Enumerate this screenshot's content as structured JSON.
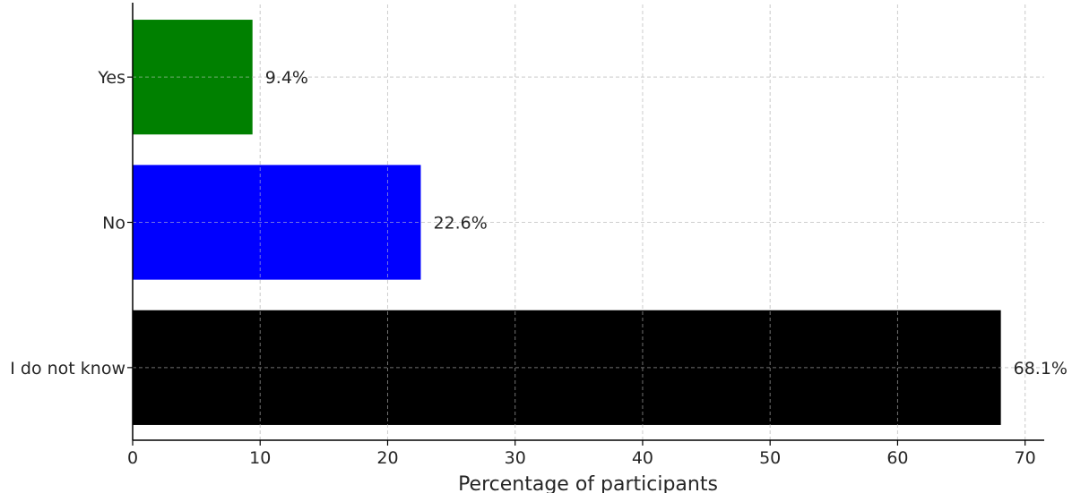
{
  "chart_data": {
    "type": "bar",
    "orientation": "horizontal",
    "categories": [
      "Yes",
      "No",
      "I do not know"
    ],
    "values": [
      9.4,
      22.6,
      68.1
    ],
    "value_labels": [
      "9.4%",
      "22.6%",
      "68.1%"
    ],
    "colors": [
      "#008000",
      "#0000ff",
      "#000000"
    ],
    "title": "",
    "xlabel": "Percentage of participants",
    "ylabel": "",
    "xlim": [
      0,
      71.5
    ],
    "xticks": [
      0,
      10,
      20,
      30,
      40,
      50,
      60,
      70
    ],
    "grid": true
  }
}
